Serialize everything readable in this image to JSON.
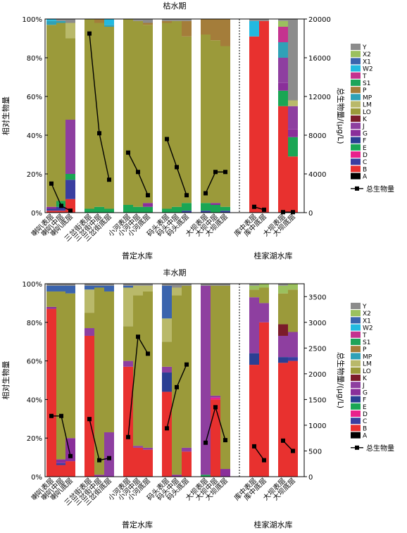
{
  "common": {
    "ylabel_left": "相对生物量",
    "ylabel_right": "总生物量/(μg/L)",
    "group_labels": [
      "普定水库",
      "桂家湖水库"
    ],
    "total_legend": "总生物量",
    "site_labels": [
      "喇叭表层",
      "喇叭中层",
      "喇叭底层",
      "三岔街表层",
      "三岔街中层",
      "三岔街底层",
      "小河表层",
      "小河中层",
      "小河底层",
      "码头表层",
      "码头中层",
      "码头底层",
      "大坝表层",
      "大坝中层",
      "大坝底层",
      "库中表层",
      "库中底层",
      "大坝表层",
      "大坝底层"
    ],
    "y_ticks_pct": [
      "0%",
      "20%",
      "40%",
      "60%",
      "80%",
      "100%"
    ],
    "legend_items": [
      "Y",
      "X2",
      "X1",
      "W2",
      "T",
      "S1",
      "P",
      "MP",
      "LM",
      "LO",
      "K",
      "J",
      "G",
      "F",
      "E",
      "D",
      "C",
      "B",
      "A"
    ],
    "colors": {
      "A": "#000000",
      "B": "#e8312f",
      "C": "#3a3ea0",
      "D": "#e9218c",
      "E": "#1aa654",
      "F": "#2b3f93",
      "G": "#8a2f9a",
      "J": "#8e3fa0",
      "K": "#7b1c2a",
      "LO": "#9b9a3a",
      "LM": "#b9b96a",
      "MP": "#2fa1b7",
      "P": "#a47d3a",
      "S1": "#1ea45a",
      "T": "#c4338f",
      "W2": "#22b9e0",
      "X1": "#3b64ad",
      "X2": "#9bc05e",
      "Y": "#8c8c8c"
    }
  },
  "chart_data": [
    {
      "type": "bar",
      "title": "枯水期",
      "stacked": true,
      "y2lim": [
        0,
        20000
      ],
      "y2_ticks": [
        "0",
        "4000",
        "8000",
        "12000",
        "16000",
        "20000"
      ],
      "totals": [
        3000,
        700,
        200,
        18500,
        8200,
        3400,
        6200,
        4200,
        1800,
        7600,
        4700,
        1800,
        2000,
        4200,
        4200,
        600,
        300,
        50,
        50
      ],
      "compositions": [
        {
          "B": 1,
          "C": 1,
          "G": 1,
          "LO": 94,
          "MP": 2,
          "W2": 1
        },
        {
          "B": 1,
          "C": 2,
          "E": 3,
          "LO": 92,
          "MP": 1,
          "Y": 1
        },
        {
          "B": 7,
          "C": 10,
          "E": 3,
          "J": 28,
          "LO": 42,
          "LM": 8,
          "Y": 2
        },
        {
          "E": 2,
          "LO": 98
        },
        {
          "E": 3,
          "LO": 95,
          "P": 2
        },
        {
          "E": 2,
          "LO": 94,
          "MP": 1,
          "W2": 3
        },
        {
          "E": 4,
          "LO": 96
        },
        {
          "E": 3,
          "LO": 96,
          "Y": 1
        },
        {
          "E": 3,
          "G": 2,
          "LO": 92,
          "P": 1,
          "Y": 2
        },
        {
          "E": 2,
          "LO": 96,
          "P": 1,
          "Y": 1
        },
        {
          "E": 3,
          "LO": 96,
          "Y": 1
        },
        {
          "C": 1,
          "E": 4,
          "LO": 86,
          "P": 8,
          "Y": 1
        },
        {
          "C": 1,
          "E": 4,
          "LO": 87,
          "P": 8
        },
        {
          "E": 4,
          "G": 1,
          "LO": 84,
          "P": 11
        },
        {
          "C": 1,
          "E": 2,
          "LO": 83,
          "P": 14
        },
        {
          "B": 91,
          "W2": 8,
          "Y": 1
        },
        {
          "B": 99,
          "Y": 1
        },
        {
          "B": 55,
          "E": 8,
          "MP": 8,
          "G": 4,
          "J": 13,
          "T": 8,
          "X2": 3,
          "Y": 1
        },
        {
          "B": 29,
          "E": 10,
          "J": 12,
          "G": 4,
          "LM": 3,
          "Y": 42
        }
      ]
    },
    {
      "type": "bar",
      "title": "丰水期",
      "stacked": true,
      "y2lim": [
        0,
        3750
      ],
      "y2_ticks": [
        "0",
        "500",
        "1000",
        "1500",
        "2000",
        "2500",
        "3000",
        "3500"
      ],
      "totals": [
        1180,
        1180,
        400,
        1120,
        320,
        360,
        770,
        2720,
        2390,
        940,
        1740,
        2180,
        660,
        1350,
        710,
        590,
        320,
        700,
        500
      ],
      "compositions": [
        {
          "B": 87,
          "G": 1,
          "LO": 8,
          "X1": 3,
          "Y": 1
        },
        {
          "B": 6,
          "C": 1,
          "G": 2,
          "LO": 87,
          "X1": 3,
          "Y": 1
        },
        {
          "B": 8,
          "G": 12,
          "LO": 75,
          "X1": 4,
          "Y": 1
        },
        {
          "B": 73,
          "J": 4,
          "LM": 12,
          "LO": 8,
          "X1": 2,
          "Y": 1
        },
        {
          "G": 1,
          "LO": 97,
          "X1": 1,
          "Y": 1
        },
        {
          "J": 23,
          "LO": 73,
          "X1": 3,
          "Y": 1
        },
        {
          "B": 57,
          "J": 3,
          "LM": 20,
          "LO": 18,
          "X1": 1,
          "Y": 1
        },
        {
          "B": 15,
          "J": 1,
          "LM": 5,
          "LO": 78,
          "Y": 1
        },
        {
          "B": 14,
          "J": 1,
          "LM": 3,
          "LO": 81,
          "Y": 1
        },
        {
          "B": 44,
          "F": 10,
          "J": 3,
          "LM": 12,
          "LO": 13,
          "X1": 17,
          "Y": 1
        },
        {
          "G": 1,
          "LM": 4,
          "LO": 93,
          "Y": 2
        },
        {
          "B": 13,
          "J": 2,
          "LO": 84,
          "Y": 1
        },
        {
          "J": 98,
          "E": 1,
          "Y": 1
        },
        {
          "B": 40,
          "D": 1,
          "J": 1,
          "LO": 57,
          "Y": 1
        },
        {
          "G": 4,
          "LO": 95,
          "Y": 1
        },
        {
          "B": 58,
          "F": 6,
          "J": 29,
          "LO": 4,
          "X2": 2,
          "Y": 1
        },
        {
          "B": 80,
          "J": 10,
          "LO": 8,
          "X2": 2
        },
        {
          "B": 59,
          "F": 3,
          "J": 11,
          "K": 6,
          "LO": 16,
          "X2": 4,
          "Y": 1
        },
        {
          "B": 60,
          "C": 2,
          "J": 13,
          "LO": 22,
          "X2": 3
        }
      ]
    }
  ]
}
